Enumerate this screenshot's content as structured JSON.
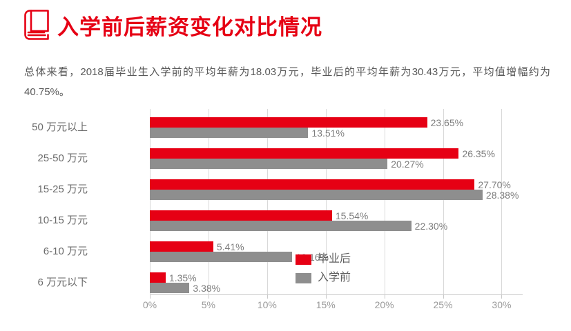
{
  "header": {
    "icon": "book-icon",
    "title": "入学前后薪资变化对比情况"
  },
  "summary": {
    "text": "总体来看，2018届毕业生入学前的平均年薪为18.03万元，毕业后的平均年薪为30.43万元，平均值增幅约为40.75%。"
  },
  "colors": {
    "accent_red": "#e60014",
    "bar_gray": "#8e8e8e",
    "grid": "#d9d9d9",
    "axis": "#c9c9c9"
  },
  "chart_data": {
    "type": "bar",
    "orientation": "horizontal",
    "title": "入学前后薪资变化对比情况",
    "xlabel": "",
    "ylabel": "",
    "categories": [
      "50 万元以上",
      "25-50 万元",
      "15-25 万元",
      "10-15 万元",
      "6-10 万元",
      "6 万元以下"
    ],
    "series": [
      {
        "name": "毕业后",
        "color": "#e60014",
        "values": [
          23.65,
          26.35,
          27.7,
          15.54,
          5.41,
          1.35
        ],
        "labels": [
          "23.65%",
          "26.35%",
          "27.70%",
          "15.54%",
          "5.41%",
          "1.35%"
        ]
      },
      {
        "name": "入学前",
        "color": "#8e8e8e",
        "values": [
          13.51,
          20.27,
          28.38,
          22.3,
          12.16,
          3.38
        ],
        "labels": [
          "13.51%",
          "20.27%",
          "28.38%",
          "22.30%",
          "12.16%",
          "3.38%"
        ]
      }
    ],
    "x_ticks": [
      "0%",
      "5%",
      "10%",
      "15%",
      "20%",
      "25%",
      "30%"
    ],
    "x_tick_values": [
      0,
      5,
      10,
      15,
      20,
      25,
      30
    ],
    "xlim": [
      0,
      31.8
    ],
    "grid": true,
    "legend_position": "inside-bottom-right"
  }
}
